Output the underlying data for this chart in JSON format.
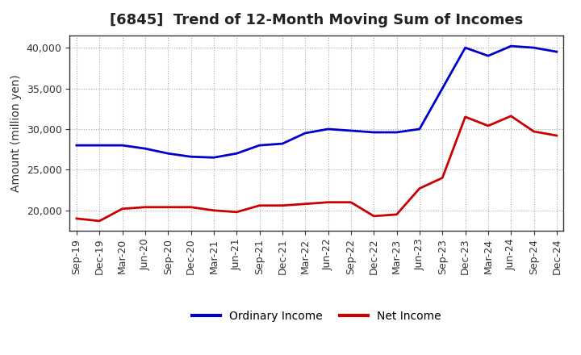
{
  "title": "[6845]  Trend of 12-Month Moving Sum of Incomes",
  "ylabel": "Amount (million yen)",
  "background_color": "#ffffff",
  "grid_color": "#aaaaaa",
  "ordinary_income_color": "#0000cc",
  "net_income_color": "#cc0000",
  "x_labels": [
    "Sep-19",
    "Dec-19",
    "Mar-20",
    "Jun-20",
    "Sep-20",
    "Dec-20",
    "Mar-21",
    "Jun-21",
    "Sep-21",
    "Dec-21",
    "Mar-22",
    "Jun-22",
    "Sep-22",
    "Dec-22",
    "Mar-23",
    "Jun-23",
    "Sep-23",
    "Dec-23",
    "Mar-24",
    "Jun-24",
    "Sep-24",
    "Dec-24"
  ],
  "ordinary_income": [
    28000,
    28000,
    28000,
    27600,
    27000,
    26600,
    26500,
    27000,
    28000,
    28200,
    29500,
    30000,
    29800,
    29600,
    29600,
    30000,
    35000,
    40000,
    39000,
    40200,
    40000,
    39500
  ],
  "net_income": [
    19000,
    18700,
    20200,
    20400,
    20400,
    20400,
    20000,
    19800,
    20600,
    20600,
    20800,
    21000,
    21000,
    19300,
    19500,
    22700,
    24000,
    31500,
    30400,
    31600,
    29700,
    29200
  ],
  "ylim": [
    17500,
    41500
  ],
  "yticks": [
    20000,
    25000,
    30000,
    35000,
    40000
  ],
  "title_fontsize": 13,
  "legend_fontsize": 10,
  "tick_fontsize": 9,
  "ylabel_fontsize": 10
}
